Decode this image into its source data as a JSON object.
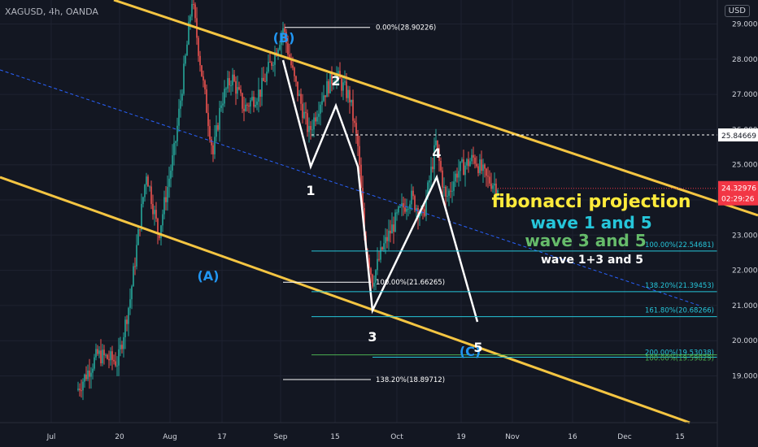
{
  "header": {
    "symbol": "XAGUSD, 4h, OANDA",
    "currency": "USD"
  },
  "chart_data": {
    "type": "candlestick",
    "ylim": [
      18.5,
      30.2
    ],
    "x_ticks": [
      "Jul",
      "20",
      "Aug",
      "17",
      "Sep",
      "15",
      "Oct",
      "19",
      "Nov",
      "16",
      "Dec",
      "15"
    ],
    "y_ticks": [
      "30.00000",
      "29.00000",
      "28.00000",
      "27.00000",
      "26.00000",
      "25.00000",
      "24.00000",
      "23.00000",
      "22.00000",
      "21.00000",
      "20.00000",
      "19.00000"
    ],
    "current_price": {
      "label": "24.32976",
      "value": 24.32976,
      "countdown": "02:29:26",
      "color": "#f23645"
    },
    "level_line": {
      "label": "25.84669",
      "value": 25.84669
    },
    "wave_labels": [
      {
        "text": "(B)",
        "color": "#2196f3"
      },
      {
        "text": "(A)",
        "color": "#2196f3"
      },
      {
        "text": "(C)",
        "color": "#2196f3"
      },
      {
        "text": "1",
        "color": "#ffffff"
      },
      {
        "text": "2",
        "color": "#ffffff"
      },
      {
        "text": "3",
        "color": "#ffffff"
      },
      {
        "text": "4",
        "color": "#ffffff"
      },
      {
        "text": "5",
        "color": "#ffffff"
      }
    ],
    "fib_labels": [
      {
        "text": "0.00%(28.90226)",
        "value": 28.90226,
        "color": "#ffffff"
      },
      {
        "text": "100.00%(21.66265)",
        "value": 21.66265,
        "color": "#ffffff"
      },
      {
        "text": "138.20%(18.89712)",
        "value": 18.89712,
        "color": "#ffffff"
      },
      {
        "text": "100.00%(22.54681)",
        "value": 22.54681,
        "color": "#26c6da"
      },
      {
        "text": "138.20%(21.39453)",
        "value": 21.39453,
        "color": "#26c6da"
      },
      {
        "text": "161.80%(20.68266)",
        "value": 20.68266,
        "color": "#26c6da"
      },
      {
        "text": "200.00%(19.53038)",
        "value": 19.53038,
        "color": "#26c6da"
      },
      {
        "text": "100.00%(19.59829)",
        "value": 19.59829,
        "color": "#4caf50"
      }
    ],
    "annotations": [
      {
        "text": "fibonacci projection",
        "color": "#ffeb3b"
      },
      {
        "text": "wave 1 and 5",
        "color": "#26c6da"
      },
      {
        "text": "wave 3 and 5",
        "color": "#66bb6a"
      },
      {
        "text": "wave 1+3 and 5",
        "color": "#ffffff"
      }
    ],
    "colors": {
      "up": "#26a69a",
      "down": "#ef5350",
      "channel": "#f4c542",
      "midline": "#2962ff",
      "background": "#131722"
    }
  }
}
